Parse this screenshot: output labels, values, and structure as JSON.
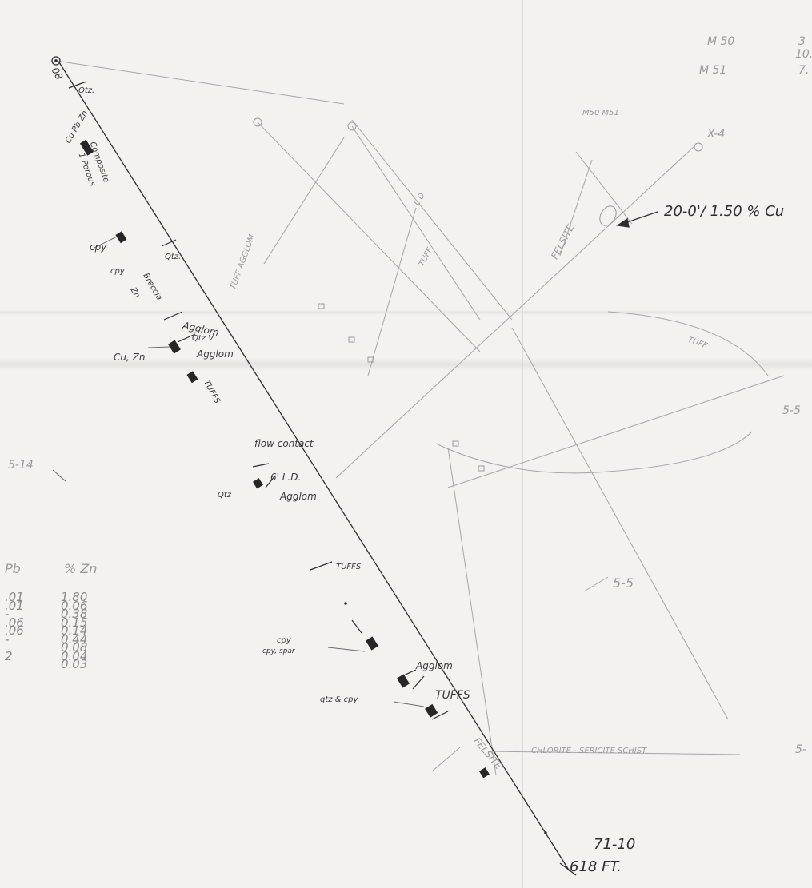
{
  "hole": {
    "id": "71-10",
    "depth": "618 FT.",
    "collar": "08",
    "composite_label": "Composite",
    "composite_sub": "1 Porous",
    "collar_metal": "Cu Pb Zn"
  },
  "intercept": {
    "label": "20-0'/ 1.50 % Cu"
  },
  "holes": {
    "m50": "M 50",
    "m51": "M 51",
    "m50_vals": "3",
    "m51_vals": "10.",
    "m51_vals2": "7.",
    "header_small": "M50  M51",
    "x4": "X-4",
    "s55": "5-5",
    "s514": "5-14",
    "s55b": "5-5",
    "s5right": "5-"
  },
  "units": {
    "felsite": "FELSITE",
    "tuff_diag": "TUFF",
    "tuff_right": "TUFF",
    "tuff_agglom": "TUFF AGGLOM",
    "ld": "L.D",
    "chlorite_schist": "CHLORITE - SERICITE  SCHIST",
    "tuffs_lower": "TUFFS",
    "felsite_lower": "FELSITE"
  },
  "log": {
    "qtz_top": "Qtz.",
    "cpy1": "cpy",
    "cpy_qtz": "cpy",
    "qtz2": "Qtz.",
    "breccia": "Breccia",
    "zn": "Zn",
    "agglom1": "Agglom",
    "qtz_v": "Qtz V",
    "cu_zn": "Cu, Zn",
    "agglom2": "Agglom",
    "tuffs1": "TUFFS",
    "flow_contact": "flow contact",
    "ld6": "6' L.D.",
    "qtz3": "Qtz",
    "agglom3": "Agglom",
    "tuffs2": "TUFFS",
    "cpy2": "cpy",
    "cpy_spar": "cpy, spar",
    "agglom4": "Agglom",
    "tuffs3": "TUFFS",
    "qtz_cpy": "qtz & cpy"
  },
  "assays": {
    "pb_header": "Pb",
    "zn_header": "% Zn",
    "pb": [
      ".01",
      ".01",
      "-",
      ".06",
      ".06",
      "-",
      "",
      "2",
      ""
    ],
    "zn": [
      "1.80",
      "0.06",
      "0.38",
      "0.15",
      "0.14",
      "0.44",
      "0.08",
      "0.04",
      "0.03"
    ]
  },
  "colors": {
    "ink": "#2e2e2e",
    "pencil": "#8c8c8c",
    "paper": "#f3f2ee"
  }
}
